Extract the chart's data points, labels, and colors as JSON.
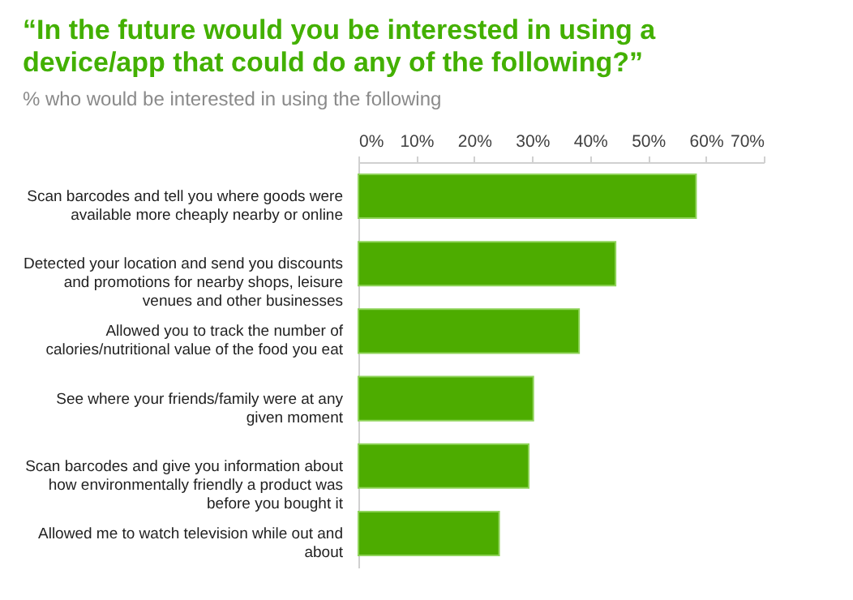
{
  "chart_data": {
    "type": "bar",
    "orientation": "horizontal",
    "title": "“In the future would you be interested in using a device/app that could do any of the following?”",
    "subtitle": "% who would be interested in using the following",
    "categories": [
      "Scan barcodes and tell you where goods were available more cheaply nearby or online",
      "Detected your location and send you discounts and promotions for nearby shops, leisure venues and other businesses",
      "Allowed you to track the number of calories/nutritional value of the food you eat",
      "See where your friends/family were at any given moment",
      "Scan barcodes and give you information about how environmentally friendly a product was before you bought it",
      "Allowed me to watch television while out and about"
    ],
    "values": [
      58.3,
      44.4,
      38.1,
      30.2,
      29.4,
      24.3
    ],
    "color": "#4dac00",
    "xlim": [
      0,
      70
    ],
    "xticks": [
      {
        "value": 0,
        "label": "0%"
      },
      {
        "value": 10,
        "label": "10%"
      },
      {
        "value": 20,
        "label": "20%"
      },
      {
        "value": 30,
        "label": "30%"
      },
      {
        "value": 40,
        "label": "40%"
      },
      {
        "value": 50,
        "label": "50%"
      },
      {
        "value": 60,
        "label": "60%"
      },
      {
        "value": 70,
        "label": "70%"
      }
    ],
    "grid": false
  }
}
